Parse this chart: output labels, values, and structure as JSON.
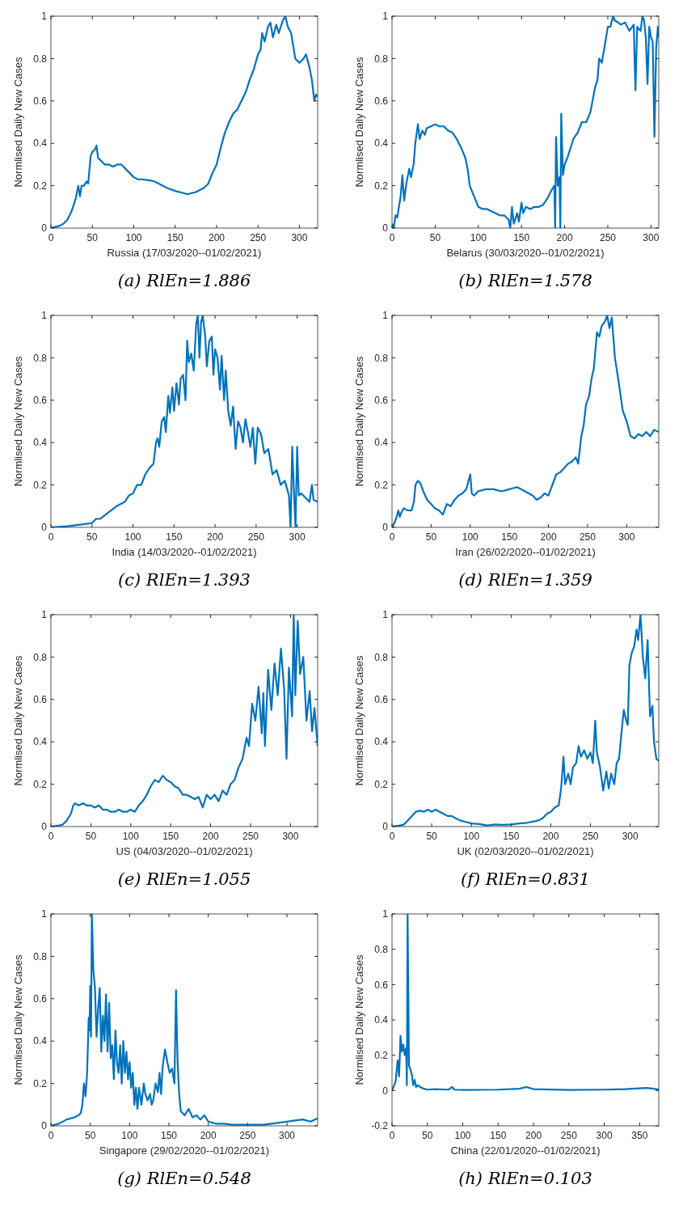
{
  "chart_data": [
    {
      "type": "line",
      "title": "(a) RlEn=1.886",
      "xlabel": "Russia (17/03/2020--01/02/2021)",
      "ylabel": "Normlised Daily New Cases",
      "xlim": [
        0,
        322
      ],
      "xticks": [
        0,
        50,
        100,
        150,
        200,
        250,
        300
      ],
      "ylim": [
        0,
        1
      ],
      "yticks": [
        0,
        0.2,
        0.4,
        0.6,
        0.8,
        1
      ],
      "grid": false,
      "series": [
        {
          "color": "#0072bd",
          "x": [
            0,
            5,
            10,
            15,
            20,
            25,
            30,
            33,
            35,
            37,
            40,
            43,
            45,
            48,
            50,
            53,
            55,
            57,
            60,
            65,
            70,
            75,
            80,
            85,
            90,
            95,
            100,
            105,
            110,
            120,
            125,
            130,
            140,
            150,
            160,
            165,
            170,
            175,
            180,
            185,
            190,
            195,
            200,
            205,
            210,
            215,
            220,
            225,
            230,
            235,
            240,
            245,
            250,
            253,
            255,
            258,
            262,
            265,
            268,
            272,
            275,
            280,
            283,
            286,
            290,
            295,
            300,
            305,
            308,
            312,
            315,
            318,
            320,
            322
          ],
          "values": [
            0,
            0.005,
            0.01,
            0.02,
            0.04,
            0.08,
            0.14,
            0.2,
            0.15,
            0.2,
            0.2,
            0.22,
            0.21,
            0.34,
            0.36,
            0.37,
            0.39,
            0.33,
            0.32,
            0.3,
            0.3,
            0.29,
            0.3,
            0.3,
            0.28,
            0.26,
            0.24,
            0.23,
            0.23,
            0.225,
            0.22,
            0.21,
            0.19,
            0.175,
            0.165,
            0.16,
            0.165,
            0.17,
            0.18,
            0.19,
            0.21,
            0.26,
            0.3,
            0.38,
            0.45,
            0.5,
            0.54,
            0.56,
            0.6,
            0.64,
            0.7,
            0.75,
            0.82,
            0.84,
            0.92,
            0.88,
            0.95,
            0.97,
            0.9,
            0.96,
            0.92,
            0.98,
            1.0,
            0.95,
            0.92,
            0.8,
            0.78,
            0.8,
            0.82,
            0.76,
            0.7,
            0.6,
            0.63,
            0.62
          ]
        }
      ]
    },
    {
      "type": "line",
      "title": "(b) RlEn=1.578",
      "xlabel": "Belarus (30/03/2020--01/02/2021)",
      "ylabel": "Normlised Daily New Cases",
      "xlim": [
        0,
        309
      ],
      "xticks": [
        0,
        50,
        100,
        150,
        200,
        250,
        300
      ],
      "ylim": [
        0,
        1
      ],
      "yticks": [
        0,
        0.2,
        0.4,
        0.6,
        0.8,
        1
      ],
      "grid": false,
      "series": [
        {
          "color": "#0072bd",
          "x": [
            0,
            2,
            4,
            6,
            10,
            12,
            14,
            17,
            20,
            22,
            25,
            27,
            30,
            32,
            35,
            38,
            40,
            45,
            50,
            55,
            60,
            65,
            70,
            75,
            80,
            85,
            88,
            90,
            95,
            100,
            105,
            110,
            115,
            120,
            125,
            130,
            135,
            137,
            139,
            141,
            145,
            147,
            150,
            152,
            155,
            160,
            165,
            170,
            175,
            180,
            185,
            188,
            189,
            190,
            192,
            194,
            195,
            196,
            198,
            200,
            203,
            207,
            210,
            215,
            220,
            225,
            230,
            235,
            238,
            240,
            243,
            246,
            250,
            253,
            256,
            258,
            262,
            265,
            270,
            275,
            280,
            282,
            284,
            288,
            290,
            292,
            294,
            296,
            298,
            300,
            302,
            304,
            306,
            308,
            309
          ],
          "values": [
            0.02,
            0,
            0.06,
            0.05,
            0.15,
            0.25,
            0.13,
            0.22,
            0.28,
            0.24,
            0.3,
            0.4,
            0.49,
            0.42,
            0.46,
            0.44,
            0.47,
            0.48,
            0.49,
            0.48,
            0.48,
            0.46,
            0.45,
            0.42,
            0.38,
            0.33,
            0.27,
            0.2,
            0.15,
            0.1,
            0.09,
            0.09,
            0.08,
            0.07,
            0.06,
            0.06,
            0.04,
            0,
            0.1,
            0.02,
            0.07,
            0.03,
            0.12,
            0.07,
            0.1,
            0.09,
            0.1,
            0.1,
            0.11,
            0.14,
            0.18,
            0.2,
            0,
            0.43,
            0.2,
            0.24,
            0,
            0.54,
            0.25,
            0.3,
            0.33,
            0.38,
            0.42,
            0.45,
            0.5,
            0.5,
            0.55,
            0.66,
            0.7,
            0.8,
            0.78,
            0.85,
            0.95,
            0.95,
            1.0,
            0.98,
            0.97,
            0.96,
            0.97,
            0.93,
            0.96,
            0.65,
            0.95,
            0.93,
            1.0,
            0.98,
            0.9,
            0.68,
            0.95,
            0.9,
            0.88,
            0.43,
            0.85,
            0.95,
            0.9
          ]
        }
      ]
    },
    {
      "type": "line",
      "title": "(c) RlEn=1.393",
      "xlabel": "India (14/03/2020--01/02/2021)",
      "ylabel": "Normlised Daily New Cases",
      "xlim": [
        0,
        325
      ],
      "xticks": [
        0,
        50,
        100,
        150,
        200,
        250,
        300
      ],
      "ylim": [
        0,
        1
      ],
      "yticks": [
        0,
        0.2,
        0.4,
        0.6,
        0.8,
        1
      ],
      "grid": false,
      "series": [
        {
          "color": "#0072bd",
          "x": [
            0,
            20,
            40,
            50,
            55,
            60,
            70,
            80,
            90,
            95,
            100,
            105,
            110,
            115,
            120,
            125,
            128,
            130,
            132,
            135,
            138,
            140,
            143,
            145,
            148,
            150,
            153,
            156,
            158,
            161,
            164,
            166,
            168,
            171,
            174,
            177,
            179,
            181,
            183,
            185,
            188,
            190,
            193,
            196,
            198,
            200,
            203,
            206,
            208,
            211,
            213,
            216,
            219,
            222,
            225,
            228,
            231,
            234,
            237,
            240,
            243,
            246,
            249,
            252,
            256,
            260,
            265,
            270,
            275,
            280,
            285,
            290,
            292,
            294,
            296,
            298,
            300,
            302,
            305,
            310,
            315,
            318,
            320,
            325
          ],
          "values": [
            0,
            0.005,
            0.015,
            0.02,
            0.04,
            0.04,
            0.07,
            0.1,
            0.12,
            0.15,
            0.16,
            0.2,
            0.2,
            0.25,
            0.28,
            0.3,
            0.4,
            0.42,
            0.38,
            0.5,
            0.52,
            0.45,
            0.62,
            0.54,
            0.66,
            0.55,
            0.68,
            0.58,
            0.7,
            0.72,
            0.6,
            0.88,
            0.78,
            0.82,
            0.74,
            0.96,
            1.0,
            0.8,
            0.97,
            1.0,
            0.9,
            0.76,
            0.88,
            0.9,
            0.72,
            0.84,
            0.8,
            0.65,
            0.81,
            0.6,
            0.74,
            0.55,
            0.48,
            0.57,
            0.37,
            0.5,
            0.47,
            0.4,
            0.51,
            0.45,
            0.38,
            0.47,
            0.3,
            0.47,
            0.44,
            0.35,
            0.37,
            0.25,
            0.27,
            0.2,
            0.22,
            0.15,
            0,
            0.38,
            0.18,
            0,
            0.38,
            0.15,
            0.16,
            0.14,
            0.12,
            0.2,
            0.13,
            0.12
          ]
        }
      ]
    },
    {
      "type": "line",
      "title": "(d) RlEn=1.359",
      "xlabel": "Iran (26/02/2020--01/02/2021)",
      "ylabel": "Normlised Daily New Cases",
      "xlim": [
        0,
        341
      ],
      "xticks": [
        0,
        50,
        100,
        150,
        200,
        250,
        300
      ],
      "ylim": [
        0,
        1
      ],
      "yticks": [
        0,
        0.2,
        0.4,
        0.6,
        0.8,
        1
      ],
      "grid": false,
      "series": [
        {
          "color": "#0072bd",
          "x": [
            0,
            3,
            6,
            8,
            10,
            12,
            15,
            20,
            25,
            28,
            30,
            33,
            36,
            40,
            45,
            50,
            55,
            60,
            65,
            70,
            75,
            80,
            85,
            90,
            95,
            100,
            102,
            105,
            110,
            120,
            130,
            140,
            150,
            160,
            170,
            180,
            185,
            190,
            195,
            200,
            205,
            210,
            215,
            220,
            225,
            230,
            235,
            238,
            242,
            245,
            248,
            252,
            255,
            258,
            262,
            265,
            268,
            272,
            275,
            278,
            281,
            285,
            290,
            295,
            300,
            305,
            310,
            315,
            320,
            325,
            330,
            335,
            341
          ],
          "values": [
            0,
            0.02,
            0.05,
            0.08,
            0.05,
            0.07,
            0.09,
            0.08,
            0.08,
            0.12,
            0.2,
            0.22,
            0.21,
            0.17,
            0.13,
            0.11,
            0.09,
            0.08,
            0.06,
            0.11,
            0.1,
            0.13,
            0.15,
            0.16,
            0.18,
            0.25,
            0.16,
            0.15,
            0.17,
            0.18,
            0.18,
            0.17,
            0.18,
            0.19,
            0.17,
            0.15,
            0.13,
            0.14,
            0.16,
            0.15,
            0.2,
            0.25,
            0.26,
            0.28,
            0.3,
            0.31,
            0.33,
            0.3,
            0.43,
            0.48,
            0.58,
            0.62,
            0.7,
            0.75,
            0.92,
            0.9,
            0.95,
            0.97,
            1.0,
            0.94,
            0.99,
            0.8,
            0.68,
            0.55,
            0.5,
            0.43,
            0.42,
            0.44,
            0.43,
            0.45,
            0.43,
            0.46,
            0.45
          ]
        }
      ]
    },
    {
      "type": "line",
      "title": "(e) RlEn=1.055",
      "xlabel": "US (04/03/2020--01/02/2021)",
      "ylabel": "Normlised Daily New Cases",
      "xlim": [
        0,
        334
      ],
      "xticks": [
        0,
        50,
        100,
        150,
        200,
        250,
        300
      ],
      "ylim": [
        0,
        1
      ],
      "yticks": [
        0,
        0.2,
        0.4,
        0.6,
        0.8,
        1
      ],
      "grid": false,
      "series": [
        {
          "color": "#0072bd",
          "x": [
            0,
            10,
            15,
            20,
            25,
            28,
            30,
            35,
            40,
            45,
            50,
            55,
            60,
            65,
            70,
            75,
            80,
            85,
            90,
            95,
            100,
            105,
            110,
            115,
            120,
            125,
            130,
            135,
            140,
            145,
            150,
            155,
            160,
            165,
            170,
            175,
            180,
            185,
            190,
            195,
            200,
            205,
            210,
            215,
            220,
            225,
            230,
            235,
            240,
            245,
            248,
            252,
            256,
            260,
            264,
            266,
            268,
            272,
            276,
            280,
            284,
            288,
            292,
            295,
            298,
            302,
            304,
            306,
            309,
            312,
            316,
            320,
            324,
            327,
            330,
            334
          ],
          "values": [
            0,
            0.005,
            0.01,
            0.03,
            0.06,
            0.1,
            0.11,
            0.1,
            0.11,
            0.1,
            0.1,
            0.09,
            0.1,
            0.08,
            0.08,
            0.07,
            0.07,
            0.08,
            0.07,
            0.07,
            0.08,
            0.07,
            0.1,
            0.12,
            0.15,
            0.19,
            0.22,
            0.21,
            0.24,
            0.22,
            0.21,
            0.19,
            0.18,
            0.15,
            0.15,
            0.14,
            0.13,
            0.14,
            0.09,
            0.15,
            0.13,
            0.15,
            0.12,
            0.17,
            0.15,
            0.2,
            0.22,
            0.28,
            0.32,
            0.42,
            0.38,
            0.58,
            0.5,
            0.66,
            0.44,
            0.63,
            0.38,
            0.74,
            0.55,
            0.77,
            0.62,
            0.84,
            0.65,
            0.32,
            0.75,
            0.52,
            1.0,
            0.62,
            0.97,
            0.72,
            0.8,
            0.5,
            0.64,
            0.45,
            0.56,
            0.38
          ]
        }
      ]
    },
    {
      "type": "line",
      "title": "(f) RlEn=0.831",
      "xlabel": "UK (02/03/2020--01/02/2021)",
      "ylabel": "Normlised Daily New Cases",
      "xlim": [
        0,
        336
      ],
      "xticks": [
        0,
        50,
        100,
        150,
        200,
        250,
        300
      ],
      "ylim": [
        0,
        1
      ],
      "yticks": [
        0,
        0.2,
        0.4,
        0.6,
        0.8,
        1
      ],
      "grid": false,
      "series": [
        {
          "color": "#0072bd",
          "x": [
            0,
            10,
            15,
            20,
            25,
            30,
            35,
            40,
            45,
            50,
            55,
            60,
            65,
            70,
            75,
            80,
            85,
            90,
            95,
            100,
            110,
            120,
            130,
            140,
            150,
            160,
            170,
            180,
            185,
            190,
            195,
            200,
            205,
            210,
            213,
            216,
            218,
            222,
            225,
            228,
            232,
            235,
            238,
            242,
            246,
            250,
            253,
            256,
            258,
            262,
            266,
            270,
            273,
            276,
            280,
            283,
            286,
            290,
            292,
            295,
            297,
            299,
            302,
            305,
            308,
            310,
            313,
            316,
            319,
            322,
            325,
            328,
            330,
            333,
            336
          ],
          "values": [
            0,
            0.005,
            0.01,
            0.03,
            0.05,
            0.07,
            0.075,
            0.07,
            0.08,
            0.07,
            0.08,
            0.07,
            0.06,
            0.05,
            0.05,
            0.04,
            0.03,
            0.025,
            0.02,
            0.015,
            0.012,
            0.005,
            0.01,
            0.008,
            0.01,
            0.015,
            0.018,
            0.025,
            0.03,
            0.04,
            0.06,
            0.07,
            0.09,
            0.1,
            0.18,
            0.33,
            0.2,
            0.25,
            0.2,
            0.28,
            0.3,
            0.38,
            0.33,
            0.36,
            0.32,
            0.35,
            0.3,
            0.5,
            0.35,
            0.28,
            0.17,
            0.26,
            0.18,
            0.25,
            0.2,
            0.3,
            0.32,
            0.48,
            0.55,
            0.5,
            0.48,
            0.76,
            0.82,
            0.85,
            0.93,
            0.88,
            1.0,
            0.8,
            0.7,
            0.88,
            0.52,
            0.57,
            0.4,
            0.32,
            0.31
          ]
        }
      ]
    },
    {
      "type": "line",
      "title": "(g) RlEn=0.548",
      "xlabel": "Singapore (29/02/2020--01/02/2021)",
      "ylabel": "Normlised Daily New Cases",
      "xlim": [
        0,
        339
      ],
      "xticks": [
        0,
        50,
        100,
        150,
        200,
        250,
        300
      ],
      "ylim": [
        0,
        1
      ],
      "yticks": [
        0,
        0.2,
        0.4,
        0.6,
        0.8,
        1
      ],
      "grid": false,
      "series": [
        {
          "color": "#0072bd",
          "x": [
            0,
            10,
            20,
            30,
            35,
            38,
            40,
            42,
            44,
            46,
            48,
            49,
            50,
            51,
            52,
            54,
            56,
            58,
            60,
            62,
            64,
            66,
            68,
            70,
            72,
            74,
            76,
            78,
            80,
            82,
            84,
            86,
            88,
            90,
            92,
            94,
            96,
            98,
            100,
            102,
            104,
            106,
            108,
            110,
            112,
            115,
            118,
            120,
            123,
            126,
            128,
            130,
            133,
            136,
            138,
            140,
            142,
            145,
            148,
            151,
            154,
            157,
            159,
            161,
            163,
            165,
            170,
            175,
            180,
            185,
            190,
            195,
            200,
            210,
            220,
            230,
            250,
            270,
            280,
            290,
            300,
            310,
            320,
            330,
            339
          ],
          "values": [
            0,
            0.01,
            0.03,
            0.04,
            0.05,
            0.06,
            0.1,
            0.2,
            0.14,
            0.25,
            0.51,
            0.45,
            0.66,
            0.42,
            1.0,
            0.73,
            0.65,
            0.42,
            0.55,
            0.65,
            0.35,
            0.52,
            0.4,
            0.62,
            0.35,
            0.58,
            0.32,
            0.38,
            0.22,
            0.45,
            0.3,
            0.25,
            0.38,
            0.2,
            0.4,
            0.25,
            0.35,
            0.22,
            0.3,
            0.18,
            0.25,
            0.1,
            0.18,
            0.08,
            0.18,
            0.1,
            0.2,
            0.15,
            0.12,
            0.15,
            0.1,
            0.12,
            0.2,
            0.16,
            0.25,
            0.15,
            0.28,
            0.36,
            0.3,
            0.25,
            0.27,
            0.2,
            0.64,
            0.3,
            0.15,
            0.07,
            0.05,
            0.08,
            0.04,
            0.05,
            0.03,
            0.05,
            0.02,
            0.01,
            0.01,
            0.005,
            0.005,
            0.005,
            0.01,
            0.015,
            0.02,
            0.025,
            0.03,
            0.02,
            0.035
          ]
        }
      ]
    },
    {
      "type": "line",
      "title": "(h) RlEn=0.103",
      "xlabel": "China (22/01/2020--01/02/2021)",
      "ylabel": "Normlised Daily New Cases",
      "xlim": [
        0,
        377
      ],
      "xticks": [
        0,
        50,
        100,
        150,
        200,
        250,
        300,
        350
      ],
      "ylim": [
        -0.2,
        1
      ],
      "yticks": [
        -0.2,
        0,
        0.2,
        0.4,
        0.6,
        0.8,
        1
      ],
      "grid": false,
      "series": [
        {
          "color": "#0072bd",
          "x": [
            0,
            5,
            8,
            10,
            12,
            14,
            16,
            18,
            20,
            21,
            22,
            24,
            26,
            28,
            30,
            32,
            34,
            36,
            40,
            45,
            50,
            60,
            80,
            85,
            88,
            100,
            150,
            180,
            190,
            200,
            250,
            300,
            330,
            360,
            370,
            377
          ],
          "values": [
            0,
            0.05,
            0.17,
            0.08,
            0.31,
            0.22,
            0.26,
            0.2,
            0.24,
            0.03,
            1.0,
            0.14,
            0.12,
            0.09,
            0.03,
            0.06,
            0.02,
            0.03,
            0.02,
            0.01,
            0.005,
            0.008,
            0.005,
            0.02,
            0.005,
            0.003,
            0.005,
            0.01,
            0.02,
            0.008,
            0.003,
            0.005,
            0.008,
            0.015,
            0.01,
            0.005
          ]
        }
      ]
    }
  ]
}
